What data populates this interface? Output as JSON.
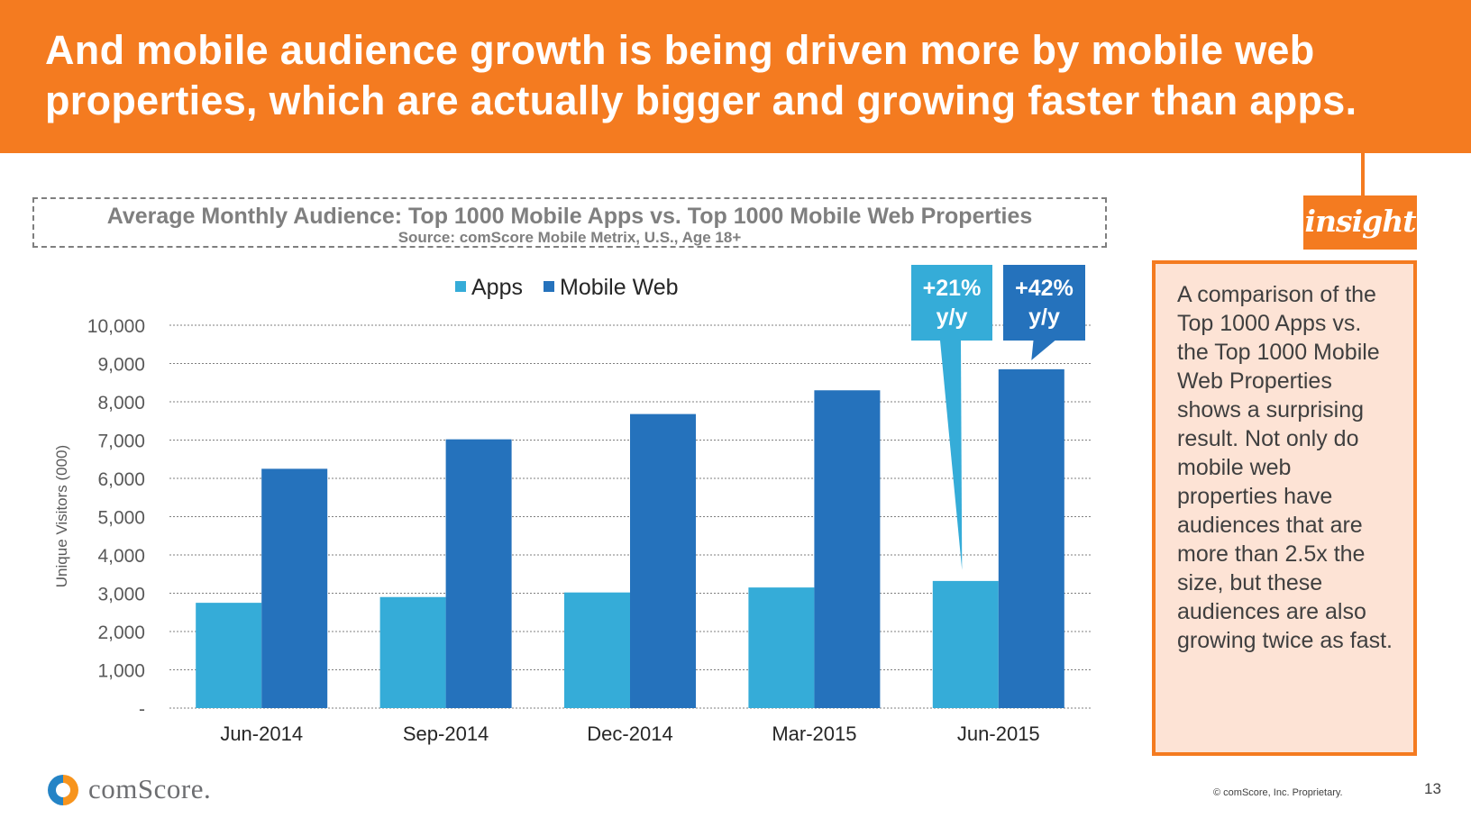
{
  "slide": {
    "headline": "And mobile audience growth is being driven more by mobile web properties, which are actually bigger and growing faster than apps.",
    "page_number": "13",
    "copyright": "© comScore, Inc. Proprietary.",
    "logo_text": "comScore."
  },
  "insight": {
    "tag": "insight",
    "text": "A comparison of the Top 1000 Apps vs. the Top 1000 Mobile Web Properties shows a surprising result. Not only do mobile web properties have audiences that are more than 2.5x the size, but these audiences are also growing twice as fast."
  },
  "colors": {
    "orange": "#f47b20",
    "apps": "#35acd8",
    "mobile_web": "#2572bc",
    "grid": "#7f7f7f",
    "insight_bg": "#fde3d5"
  },
  "chart_data": {
    "type": "bar",
    "title": "Average Monthly Audience: Top 1000 Mobile Apps vs. Top 1000 Mobile Web Properties",
    "subtitle": "Source: comScore Mobile Metrix, U.S., Age 18+",
    "categories": [
      "Jun-2014",
      "Sep-2014",
      "Dec-2014",
      "Mar-2015",
      "Jun-2015"
    ],
    "series": [
      {
        "name": "Apps",
        "color": "#35acd8",
        "values": [
          2750,
          2900,
          3020,
          3150,
          3320
        ]
      },
      {
        "name": "Mobile Web",
        "color": "#2572bc",
        "values": [
          6250,
          7020,
          7680,
          8300,
          8850
        ]
      }
    ],
    "ylabel": "Unique Visitors (000)",
    "xlabel": "",
    "ylim": [
      0,
      10000
    ],
    "yticks": [
      0,
      1000,
      2000,
      3000,
      4000,
      5000,
      6000,
      7000,
      8000,
      9000,
      10000
    ],
    "ytick_labels": [
      "-",
      "1,000",
      "2,000",
      "3,000",
      "4,000",
      "5,000",
      "6,000",
      "7,000",
      "8,000",
      "9,000",
      "10,000"
    ],
    "grid": true,
    "legend": "top",
    "annotations": [
      {
        "series": "Apps",
        "category": "Jun-2015",
        "lines": [
          "+21%",
          "y/y"
        ]
      },
      {
        "series": "Mobile Web",
        "category": "Jun-2015",
        "lines": [
          "+42%",
          "y/y"
        ]
      }
    ]
  }
}
